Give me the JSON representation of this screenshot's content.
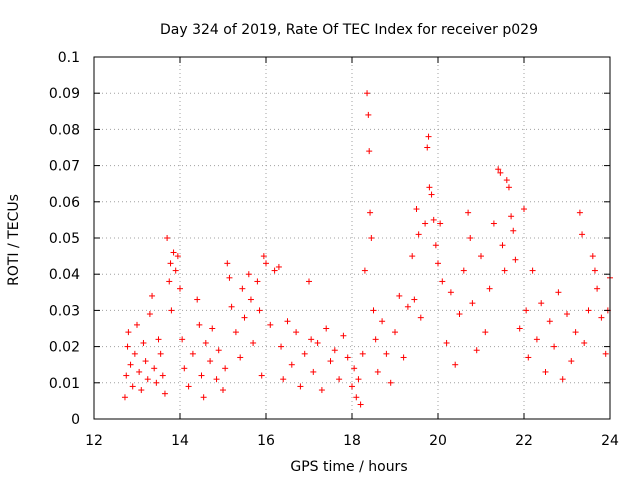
{
  "chart_data": {
    "type": "scatter",
    "title": "Day 324 of 2019, Rate Of TEC Index for receiver p029",
    "xlabel": "GPS time / hours",
    "ylabel": "ROTI / TECUs",
    "xlim": [
      12,
      24
    ],
    "ylim": [
      0,
      0.1
    ],
    "xticks": [
      "12",
      "14",
      "16",
      "18",
      "20",
      "22",
      "24"
    ],
    "yticks": [
      "0",
      "0.01",
      "0.02",
      "0.03",
      "0.04",
      "0.05",
      "0.06",
      "0.07",
      "0.08",
      "0.09",
      "0.1"
    ],
    "grid": true,
    "marker": "+",
    "color": "#ff0000",
    "series": [
      {
        "name": "ROTI",
        "points": [
          [
            12.72,
            0.006
          ],
          [
            12.75,
            0.012
          ],
          [
            12.78,
            0.02
          ],
          [
            12.8,
            0.024
          ],
          [
            12.85,
            0.015
          ],
          [
            12.9,
            0.009
          ],
          [
            12.95,
            0.018
          ],
          [
            13.0,
            0.026
          ],
          [
            13.05,
            0.013
          ],
          [
            13.1,
            0.008
          ],
          [
            13.15,
            0.021
          ],
          [
            13.2,
            0.016
          ],
          [
            13.25,
            0.011
          ],
          [
            13.3,
            0.029
          ],
          [
            13.35,
            0.034
          ],
          [
            13.4,
            0.014
          ],
          [
            13.45,
            0.01
          ],
          [
            13.5,
            0.022
          ],
          [
            13.55,
            0.018
          ],
          [
            13.6,
            0.012
          ],
          [
            13.65,
            0.007
          ],
          [
            13.7,
            0.05
          ],
          [
            13.75,
            0.038
          ],
          [
            13.78,
            0.043
          ],
          [
            13.8,
            0.03
          ],
          [
            13.85,
            0.046
          ],
          [
            13.9,
            0.041
          ],
          [
            13.95,
            0.045
          ],
          [
            14.0,
            0.036
          ],
          [
            14.05,
            0.022
          ],
          [
            14.1,
            0.014
          ],
          [
            14.2,
            0.009
          ],
          [
            14.3,
            0.018
          ],
          [
            14.4,
            0.033
          ],
          [
            14.45,
            0.026
          ],
          [
            14.5,
            0.012
          ],
          [
            14.55,
            0.006
          ],
          [
            14.6,
            0.021
          ],
          [
            14.7,
            0.016
          ],
          [
            14.75,
            0.025
          ],
          [
            14.85,
            0.011
          ],
          [
            14.9,
            0.019
          ],
          [
            15.0,
            0.008
          ],
          [
            15.05,
            0.014
          ],
          [
            15.1,
            0.043
          ],
          [
            15.15,
            0.039
          ],
          [
            15.2,
            0.031
          ],
          [
            15.3,
            0.024
          ],
          [
            15.4,
            0.017
          ],
          [
            15.45,
            0.036
          ],
          [
            15.5,
            0.028
          ],
          [
            15.6,
            0.04
          ],
          [
            15.65,
            0.033
          ],
          [
            15.7,
            0.021
          ],
          [
            15.8,
            0.038
          ],
          [
            15.85,
            0.03
          ],
          [
            15.9,
            0.012
          ],
          [
            15.95,
            0.045
          ],
          [
            16.0,
            0.043
          ],
          [
            16.1,
            0.026
          ],
          [
            16.2,
            0.041
          ],
          [
            16.3,
            0.042
          ],
          [
            16.35,
            0.02
          ],
          [
            16.4,
            0.011
          ],
          [
            16.5,
            0.027
          ],
          [
            16.6,
            0.015
          ],
          [
            16.7,
            0.024
          ],
          [
            16.8,
            0.009
          ],
          [
            16.9,
            0.018
          ],
          [
            17.0,
            0.038
          ],
          [
            17.05,
            0.022
          ],
          [
            17.1,
            0.013
          ],
          [
            17.2,
            0.021
          ],
          [
            17.3,
            0.008
          ],
          [
            17.4,
            0.025
          ],
          [
            17.5,
            0.016
          ],
          [
            17.6,
            0.019
          ],
          [
            17.7,
            0.011
          ],
          [
            17.8,
            0.023
          ],
          [
            17.9,
            0.017
          ],
          [
            18.0,
            0.009
          ],
          [
            18.05,
            0.014
          ],
          [
            18.1,
            0.006
          ],
          [
            18.15,
            0.011
          ],
          [
            18.2,
            0.004
          ],
          [
            18.25,
            0.018
          ],
          [
            18.3,
            0.041
          ],
          [
            18.35,
            0.09
          ],
          [
            18.38,
            0.084
          ],
          [
            18.4,
            0.074
          ],
          [
            18.42,
            0.057
          ],
          [
            18.45,
            0.05
          ],
          [
            18.5,
            0.03
          ],
          [
            18.55,
            0.022
          ],
          [
            18.6,
            0.013
          ],
          [
            18.7,
            0.027
          ],
          [
            18.8,
            0.018
          ],
          [
            18.9,
            0.01
          ],
          [
            19.0,
            0.024
          ],
          [
            19.1,
            0.034
          ],
          [
            19.2,
            0.017
          ],
          [
            19.3,
            0.031
          ],
          [
            19.4,
            0.045
          ],
          [
            19.45,
            0.033
          ],
          [
            19.5,
            0.058
          ],
          [
            19.55,
            0.051
          ],
          [
            19.6,
            0.028
          ],
          [
            19.7,
            0.054
          ],
          [
            19.75,
            0.075
          ],
          [
            19.78,
            0.078
          ],
          [
            19.8,
            0.064
          ],
          [
            19.85,
            0.062
          ],
          [
            19.9,
            0.055
          ],
          [
            19.95,
            0.048
          ],
          [
            20.0,
            0.043
          ],
          [
            20.05,
            0.054
          ],
          [
            20.1,
            0.038
          ],
          [
            20.2,
            0.021
          ],
          [
            20.3,
            0.035
          ],
          [
            20.4,
            0.015
          ],
          [
            20.5,
            0.029
          ],
          [
            20.6,
            0.041
          ],
          [
            20.7,
            0.057
          ],
          [
            20.75,
            0.05
          ],
          [
            20.8,
            0.032
          ],
          [
            20.9,
            0.019
          ],
          [
            21.0,
            0.045
          ],
          [
            21.1,
            0.024
          ],
          [
            21.2,
            0.036
          ],
          [
            21.3,
            0.054
          ],
          [
            21.4,
            0.069
          ],
          [
            21.45,
            0.068
          ],
          [
            21.5,
            0.048
          ],
          [
            21.55,
            0.041
          ],
          [
            21.6,
            0.066
          ],
          [
            21.65,
            0.064
          ],
          [
            21.7,
            0.056
          ],
          [
            21.75,
            0.052
          ],
          [
            21.8,
            0.044
          ],
          [
            21.9,
            0.025
          ],
          [
            22.0,
            0.058
          ],
          [
            22.05,
            0.03
          ],
          [
            22.1,
            0.017
          ],
          [
            22.2,
            0.041
          ],
          [
            22.3,
            0.022
          ],
          [
            22.4,
            0.032
          ],
          [
            22.5,
            0.013
          ],
          [
            22.6,
            0.027
          ],
          [
            22.7,
            0.02
          ],
          [
            22.8,
            0.035
          ],
          [
            22.9,
            0.011
          ],
          [
            23.0,
            0.029
          ],
          [
            23.1,
            0.016
          ],
          [
            23.2,
            0.024
          ],
          [
            23.3,
            0.057
          ],
          [
            23.35,
            0.051
          ],
          [
            23.4,
            0.021
          ],
          [
            23.5,
            0.03
          ],
          [
            23.6,
            0.045
          ],
          [
            23.65,
            0.041
          ],
          [
            23.7,
            0.036
          ],
          [
            23.8,
            0.028
          ],
          [
            23.9,
            0.018
          ],
          [
            23.95,
            0.03
          ],
          [
            24.0,
            0.039
          ]
        ]
      }
    ]
  }
}
